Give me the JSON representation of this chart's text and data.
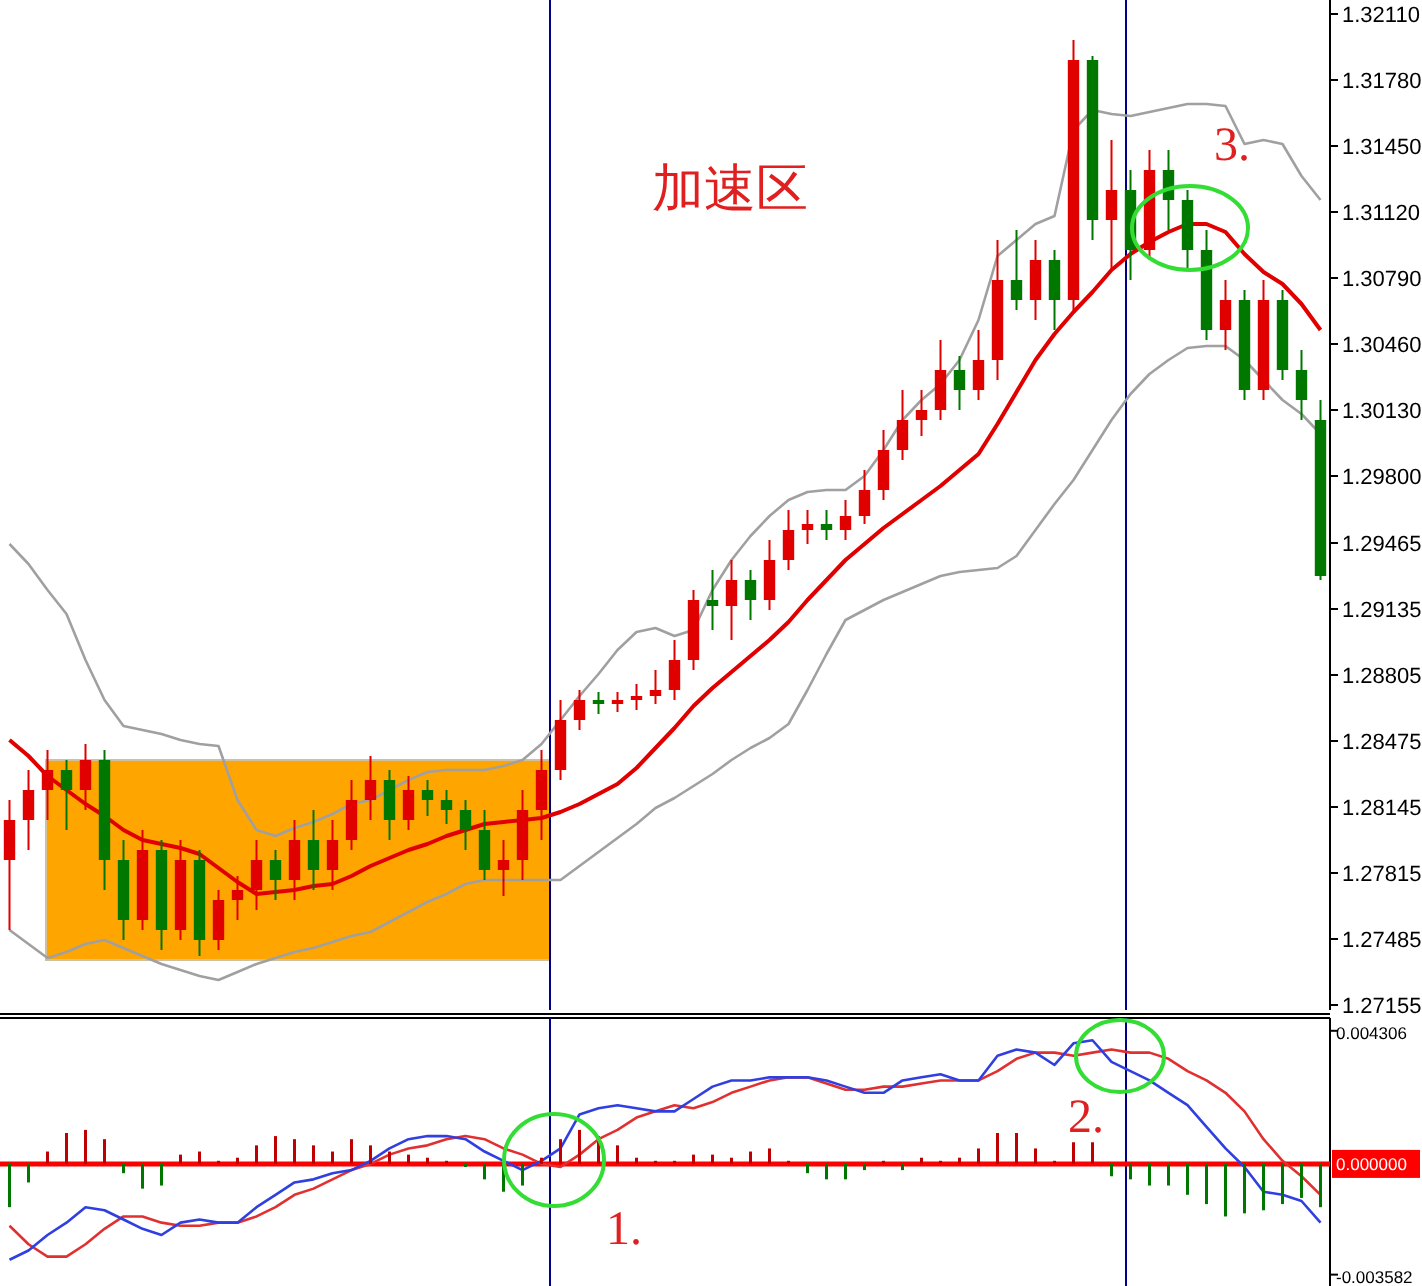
{
  "chart_data": [
    {
      "type": "candlestick",
      "categories": [
        null,
        null,
        null,
        null,
        null,
        null,
        null,
        null,
        null,
        null,
        null,
        null,
        null,
        null,
        null,
        null,
        null,
        null,
        null,
        null,
        null,
        null,
        null,
        null,
        null,
        null,
        null,
        null,
        null,
        null,
        null,
        null,
        null,
        null,
        null,
        null,
        null,
        null,
        null,
        null,
        null,
        null,
        null,
        null,
        null,
        null,
        null,
        null,
        null,
        null,
        null,
        null,
        null,
        null,
        null,
        null,
        null,
        null,
        null,
        null,
        null,
        null,
        null,
        null,
        null,
        null,
        null,
        null,
        null,
        null
      ],
      "ohlc": [
        [
          1.2788,
          1.2818,
          1.2753,
          1.2808
        ],
        [
          1.2808,
          1.2833,
          1.2793,
          1.2823
        ],
        [
          1.2823,
          1.2843,
          1.2808,
          1.2833
        ],
        [
          1.2833,
          1.2838,
          1.2803,
          1.2823
        ],
        [
          1.2823,
          1.2846,
          1.2813,
          1.2838
        ],
        [
          1.2838,
          1.2843,
          1.2773,
          1.2788
        ],
        [
          1.2788,
          1.2798,
          1.2748,
          1.2758
        ],
        [
          1.2758,
          1.2803,
          1.2753,
          1.2793
        ],
        [
          1.2793,
          1.2798,
          1.2743,
          1.2753
        ],
        [
          1.2753,
          1.2798,
          1.2748,
          1.2788
        ],
        [
          1.2788,
          1.2793,
          1.274,
          1.2748
        ],
        [
          1.2748,
          1.2773,
          1.2743,
          1.2768
        ],
        [
          1.2768,
          1.278,
          1.2758,
          1.2773
        ],
        [
          1.2773,
          1.2798,
          1.2763,
          1.2788
        ],
        [
          1.2788,
          1.2793,
          1.2768,
          1.2778
        ],
        [
          1.2778,
          1.2808,
          1.2768,
          1.2798
        ],
        [
          1.2798,
          1.2813,
          1.2773,
          1.2783
        ],
        [
          1.2783,
          1.2808,
          1.2773,
          1.2798
        ],
        [
          1.2798,
          1.2828,
          1.2793,
          1.2818
        ],
        [
          1.2818,
          1.284,
          1.2808,
          1.2828
        ],
        [
          1.2828,
          1.2833,
          1.2798,
          1.2808
        ],
        [
          1.2808,
          1.283,
          1.2803,
          1.2823
        ],
        [
          1.2823,
          1.2828,
          1.281,
          1.2818
        ],
        [
          1.2818,
          1.2823,
          1.2806,
          1.2813
        ],
        [
          1.2813,
          1.2818,
          1.2793,
          1.2803
        ],
        [
          1.2803,
          1.2813,
          1.2778,
          1.2783
        ],
        [
          1.2783,
          1.2798,
          1.277,
          1.2788
        ],
        [
          1.2788,
          1.2823,
          1.2778,
          1.2813
        ],
        [
          1.2813,
          1.2843,
          1.2798,
          1.2833
        ],
        [
          1.2833,
          1.2868,
          1.2828,
          1.2858
        ],
        [
          1.2858,
          1.2873,
          1.2853,
          1.2868
        ],
        [
          1.2868,
          1.2872,
          1.2861,
          1.2866
        ],
        [
          1.2866,
          1.2872,
          1.2862,
          1.2868
        ],
        [
          1.2868,
          1.2876,
          1.2863,
          1.287
        ],
        [
          1.287,
          1.2883,
          1.2866,
          1.2873
        ],
        [
          1.2873,
          1.2898,
          1.2868,
          1.2888
        ],
        [
          1.2888,
          1.2923,
          1.2883,
          1.2918
        ],
        [
          1.2918,
          1.2933,
          1.2903,
          1.2915
        ],
        [
          1.2915,
          1.2938,
          1.2898,
          1.2928
        ],
        [
          1.2928,
          1.2933,
          1.2908,
          1.2918
        ],
        [
          1.2918,
          1.2948,
          1.2913,
          1.2938
        ],
        [
          1.2938,
          1.2963,
          1.2933,
          1.2953
        ],
        [
          1.2953,
          1.2963,
          1.2946,
          1.2956
        ],
        [
          1.2956,
          1.2963,
          1.2948,
          1.2953
        ],
        [
          1.2953,
          1.2968,
          1.2948,
          1.296
        ],
        [
          1.296,
          1.2983,
          1.2956,
          1.2973
        ],
        [
          1.2973,
          1.3003,
          1.2968,
          1.2993
        ],
        [
          1.2993,
          1.3023,
          1.2988,
          1.3008
        ],
        [
          1.3008,
          1.3023,
          1.3,
          1.3013
        ],
        [
          1.3013,
          1.3048,
          1.3008,
          1.3033
        ],
        [
          1.3033,
          1.304,
          1.3013,
          1.3023
        ],
        [
          1.3023,
          1.3053,
          1.3018,
          1.3038
        ],
        [
          1.3038,
          1.3098,
          1.3028,
          1.3078
        ],
        [
          1.3078,
          1.3103,
          1.3063,
          1.3068
        ],
        [
          1.3068,
          1.3098,
          1.3058,
          1.3088
        ],
        [
          1.3088,
          1.3093,
          1.3053,
          1.3068
        ],
        [
          1.3068,
          1.3198,
          1.3063,
          1.3188
        ],
        [
          1.3188,
          1.319,
          1.3098,
          1.3108
        ],
        [
          1.3108,
          1.3148,
          1.3083,
          1.3123
        ],
        [
          1.3123,
          1.3133,
          1.3078,
          1.3093
        ],
        [
          1.3093,
          1.3143,
          1.3088,
          1.3133
        ],
        [
          1.3133,
          1.3143,
          1.3103,
          1.3118
        ],
        [
          1.3118,
          1.3123,
          1.3083,
          1.3093
        ],
        [
          1.3093,
          1.3103,
          1.3048,
          1.3053
        ],
        [
          1.3053,
          1.3078,
          1.3043,
          1.3068
        ],
        [
          1.3068,
          1.3073,
          1.3018,
          1.3023
        ],
        [
          1.3023,
          1.3078,
          1.3018,
          1.3068
        ],
        [
          1.3068,
          1.3073,
          1.3028,
          1.3033
        ],
        [
          1.3033,
          1.3043,
          1.3008,
          1.3018
        ],
        [
          1.3008,
          1.3018,
          1.2928,
          1.293
        ]
      ],
      "colors": [
        "#e00000",
        "#e00000",
        "#e00000",
        "#007800",
        "#e00000",
        "#007800",
        "#007800",
        "#e00000",
        "#007800",
        "#e00000",
        "#007800",
        "#e00000",
        "#e00000",
        "#e00000",
        "#007800",
        "#e00000",
        "#007800",
        "#e00000",
        "#e00000",
        "#e00000",
        "#007800",
        "#e00000",
        "#007800",
        "#007800",
        "#007800",
        "#007800",
        "#e00000",
        "#e00000",
        "#e00000",
        "#e00000",
        "#e00000",
        "#007800",
        "#e00000",
        "#e00000",
        "#e00000",
        "#e00000",
        "#e00000",
        "#007800",
        "#e00000",
        "#007800",
        "#e00000",
        "#e00000",
        "#e00000",
        "#007800",
        "#e00000",
        "#e00000",
        "#e00000",
        "#e00000",
        "#e00000",
        "#e00000",
        "#007800",
        "#e00000",
        "#e00000",
        "#007800",
        "#e00000",
        "#007800",
        "#e00000",
        "#007800",
        "#e00000",
        "#007800",
        "#e00000",
        "#007800",
        "#007800",
        "#007800",
        "#e00000",
        "#007800",
        "#e00000",
        "#007800",
        "#007800",
        "#007800"
      ],
      "series": [
        {
          "type": "line",
          "color": "#a0a0a0",
          "values": [
            1.2946,
            1.2936,
            1.2923,
            1.2911,
            1.2888,
            1.2868,
            1.2855,
            1.2853,
            1.2851,
            1.2848,
            1.2846,
            1.2845,
            1.2818,
            1.2803,
            1.28,
            1.2804,
            1.2807,
            1.2811,
            1.2816,
            1.2818,
            1.2823,
            1.2828,
            1.2832,
            1.2833,
            1.2833,
            1.2833,
            1.2835,
            1.2838,
            1.2846,
            1.2858,
            1.287,
            1.2881,
            1.2893,
            1.2902,
            1.2904,
            1.29,
            1.2903,
            1.2923,
            1.2938,
            1.295,
            1.296,
            1.2968,
            1.2972,
            1.2973,
            1.2973,
            1.298,
            1.2993,
            1.3008,
            1.3018,
            1.3026,
            1.3038,
            1.3058,
            1.309,
            1.3098,
            1.3106,
            1.311,
            1.3153,
            1.3163,
            1.3161,
            1.316,
            1.3162,
            1.3164,
            1.3166,
            1.3166,
            1.3165,
            1.3146,
            1.3148,
            1.3146,
            1.313,
            1.3118
          ]
        },
        {
          "type": "line",
          "color": "#e00000",
          "values": [
            1.2848,
            1.284,
            1.283,
            1.2823,
            1.2816,
            1.281,
            1.2803,
            1.2798,
            1.2796,
            1.2794,
            1.2791,
            1.2784,
            1.2777,
            1.2771,
            1.2772,
            1.2773,
            1.2775,
            1.2776,
            1.278,
            1.2785,
            1.2789,
            1.2793,
            1.2796,
            1.28,
            1.2803,
            1.2806,
            1.2807,
            1.2808,
            1.2809,
            1.2812,
            1.2816,
            1.2821,
            1.2826,
            1.2834,
            1.2844,
            1.2854,
            1.2865,
            1.2874,
            1.2882,
            1.289,
            1.2898,
            1.2907,
            1.2918,
            1.2928,
            1.2938,
            1.2946,
            1.2954,
            1.2961,
            1.2968,
            1.2975,
            1.2983,
            1.2991,
            1.3006,
            1.3022,
            1.3038,
            1.3051,
            1.3062,
            1.3072,
            1.3083,
            1.3091,
            1.3097,
            1.3102,
            1.3106,
            1.3106,
            1.3102,
            1.3091,
            1.3082,
            1.3076,
            1.3066,
            1.3053
          ]
        },
        {
          "type": "line",
          "color": "#a0a0a0",
          "values": [
            1.2753,
            1.2746,
            1.2739,
            1.2742,
            1.2746,
            1.2748,
            1.2744,
            1.274,
            1.2736,
            1.2733,
            1.273,
            1.2728,
            1.2732,
            1.2736,
            1.2739,
            1.2742,
            1.2744,
            1.2747,
            1.275,
            1.2752,
            1.2757,
            1.2762,
            1.2767,
            1.2771,
            1.2776,
            1.2778,
            1.2778,
            1.2778,
            1.2778,
            1.2778,
            1.2785,
            1.2792,
            1.2799,
            1.2806,
            1.2814,
            1.2819,
            1.2825,
            1.2831,
            1.2838,
            1.2844,
            1.2849,
            1.2856,
            1.2873,
            1.2891,
            1.2908,
            1.2913,
            1.2918,
            1.2922,
            1.2926,
            1.293,
            1.2932,
            1.2933,
            1.2934,
            1.294,
            1.2953,
            1.2966,
            1.2978,
            1.2993,
            1.3008,
            1.3021,
            1.3031,
            1.3038,
            1.3044,
            1.3045,
            1.3045,
            1.3038,
            1.3028,
            1.3018,
            1.3011,
            1.3001
          ]
        }
      ],
      "ylim": [
        1.2713,
        1.3218
      ],
      "yticks": [
        {
          "value": 1.3211,
          "label": "1.32110"
        },
        {
          "value": 1.3178,
          "label": "1.31780"
        },
        {
          "value": 1.3145,
          "label": "1.31450"
        },
        {
          "value": 1.3112,
          "label": "1.31120"
        },
        {
          "value": 1.3079,
          "label": "1.30790"
        },
        {
          "value": 1.3046,
          "label": "1.30460"
        },
        {
          "value": 1.3013,
          "label": "1.30130"
        },
        {
          "value": 1.298,
          "label": "1.29800"
        },
        {
          "value": 1.29465,
          "label": "1.29465"
        },
        {
          "value": 1.29135,
          "label": "1.29135"
        },
        {
          "value": 1.28805,
          "label": "1.28805"
        },
        {
          "value": 1.28475,
          "label": "1.28475"
        },
        {
          "value": 1.28145,
          "label": "1.28145"
        },
        {
          "value": 1.27815,
          "label": "1.27815"
        },
        {
          "value": 1.27485,
          "label": "1.27485"
        },
        {
          "value": 1.27155,
          "label": "1.27155"
        }
      ],
      "annotations": [
        "加速区",
        "3."
      ]
    },
    {
      "type": "bar",
      "categories": [
        null,
        null,
        null,
        null,
        null,
        null,
        null,
        null,
        null,
        null,
        null,
        null,
        null,
        null,
        null,
        null,
        null,
        null,
        null,
        null,
        null,
        null,
        null,
        null,
        null,
        null,
        null,
        null,
        null,
        null,
        null,
        null,
        null,
        null,
        null,
        null,
        null,
        null,
        null,
        null,
        null,
        null,
        null,
        null,
        null,
        null,
        null,
        null,
        null,
        null,
        null,
        null,
        null,
        null,
        null,
        null,
        null,
        null,
        null,
        null,
        null,
        null,
        null,
        null,
        null,
        null,
        null,
        null,
        null,
        null
      ],
      "series": [
        {
          "type": "bar",
          "colors": [
            "#007800",
            "#007800",
            "#c00000",
            "#c00000",
            "#c00000",
            "#c00000",
            "#007800",
            "#007800",
            "#007800",
            "#c00000",
            "#c00000",
            "#c00000",
            "#c00000",
            "#c00000",
            "#c00000",
            "#c00000",
            "#c00000",
            "#c00000",
            "#c00000",
            "#c00000",
            "#c00000",
            "#c00000",
            "#c00000",
            "#c00000",
            "#007800",
            "#007800",
            "#007800",
            "#007800",
            "#c00000",
            "#c00000",
            "#c00000",
            "#c00000",
            "#c00000",
            "#c00000",
            "#c00000",
            "#c00000",
            "#c00000",
            "#c00000",
            "#c00000",
            "#c00000",
            "#c00000",
            "#c00000",
            "#007800",
            "#007800",
            "#007800",
            "#007800",
            "#c00000",
            "#007800",
            "#c00000",
            "#c00000",
            "#c00000",
            "#c00000",
            "#c00000",
            "#c00000",
            "#c00000",
            "#c00000",
            "#c00000",
            "#c00000",
            "#007800",
            "#007800",
            "#007800",
            "#007800",
            "#007800",
            "#007800",
            "#007800",
            "#007800",
            "#007800",
            "#007800",
            "#007800",
            "#007800"
          ],
          "values": [
            -0.0014,
            -0.0006,
            0.0004,
            0.001,
            0.0011,
            0.0008,
            -0.0003,
            -0.0008,
            -0.0007,
            0.0003,
            0.0004,
            0.0001,
            0.0002,
            0.0006,
            0.0009,
            0.0008,
            0.0006,
            0.0004,
            0.0008,
            0.0006,
            0.0004,
            0.0003,
            0.0002,
            0.0001,
            -0.0001,
            -0.0005,
            -0.0009,
            -0.0007,
            0.0002,
            0.0008,
            0.0011,
            0.0009,
            0.0006,
            0.0002,
            0.0001,
            0.0001,
            0.0003,
            0.0003,
            0.0002,
            0.0004,
            0.0005,
            0.0001,
            -0.0003,
            -0.0005,
            -0.0005,
            -0.0002,
            0.0001,
            -0.0002,
            0.0002,
            0.0001,
            0.0002,
            0.0005,
            0.001,
            0.001,
            0.0005,
            0.0001,
            0.0007,
            0.0007,
            -0.0004,
            -0.0005,
            -0.0007,
            -0.0007,
            -0.001,
            -0.0013,
            -0.0017,
            -0.0016,
            -0.0015,
            -0.0013,
            -0.0011,
            -0.0014
          ]
        },
        {
          "type": "line",
          "color": "#2f3fe0",
          "values": [
            -0.0031,
            -0.0028,
            -0.0023,
            -0.0019,
            -0.0014,
            -0.0015,
            -0.0018,
            -0.0021,
            -0.0023,
            -0.0019,
            -0.0018,
            -0.0019,
            -0.0019,
            -0.0014,
            -0.001,
            -0.0006,
            -0.0005,
            -0.0003,
            -0.0002,
            0.0001,
            0.0005,
            0.0008,
            0.0009,
            0.0009,
            0.0008,
            0.0004,
            0.0001,
            -0.0002,
            0.0001,
            0.0005,
            0.0016,
            0.0018,
            0.0019,
            0.0018,
            0.0017,
            0.0017,
            0.0021,
            0.0025,
            0.0027,
            0.0027,
            0.0028,
            0.0028,
            0.0028,
            0.0027,
            0.0025,
            0.0023,
            0.0023,
            0.0027,
            0.0028,
            0.0029,
            0.0027,
            0.0027,
            0.0035,
            0.0037,
            0.0036,
            0.0032,
            0.0039,
            0.004,
            0.0033,
            0.003,
            0.0027,
            0.0023,
            0.0019,
            0.0012,
            0.0005,
            -0.0001,
            -0.0009,
            -0.001,
            -0.0012,
            -0.0019
          ]
        },
        {
          "type": "line",
          "color": "#e03030",
          "values": [
            -0.002,
            -0.0026,
            -0.003,
            -0.003,
            -0.0026,
            -0.0021,
            -0.0017,
            -0.0017,
            -0.0019,
            -0.002,
            -0.002,
            -0.0019,
            -0.0019,
            -0.0017,
            -0.0014,
            -0.001,
            -0.0008,
            -0.0005,
            -0.0002,
            0.0,
            0.0003,
            0.0005,
            0.0006,
            0.0008,
            0.0009,
            0.0008,
            0.0005,
            0.0003,
            0.0,
            -0.0001,
            0.0003,
            0.0008,
            0.0011,
            0.0015,
            0.0017,
            0.0019,
            0.0018,
            0.002,
            0.0023,
            0.0025,
            0.0027,
            0.0028,
            0.0028,
            0.0026,
            0.0024,
            0.0024,
            0.0025,
            0.0025,
            0.0026,
            0.0027,
            0.0027,
            0.0027,
            0.003,
            0.0034,
            0.0036,
            0.0036,
            0.0035,
            0.0036,
            0.0037,
            0.0036,
            0.0036,
            0.0034,
            0.003,
            0.0027,
            0.0023,
            0.0017,
            0.0008,
            0.0001,
            -0.0004,
            -0.001
          ]
        }
      ],
      "ylim": [
        -0.00395,
        0.00472
      ],
      "yticks": [
        {
          "value": 0.004306,
          "label": "0.004306"
        },
        {
          "value": -0.003582,
          "label": "-0.003582"
        }
      ],
      "ref_lines": [
        {
          "axis": "y",
          "value": 0,
          "label": "0.000000",
          "color": "#ff0000"
        }
      ],
      "annotations": [
        "1.",
        "2."
      ]
    }
  ]
}
